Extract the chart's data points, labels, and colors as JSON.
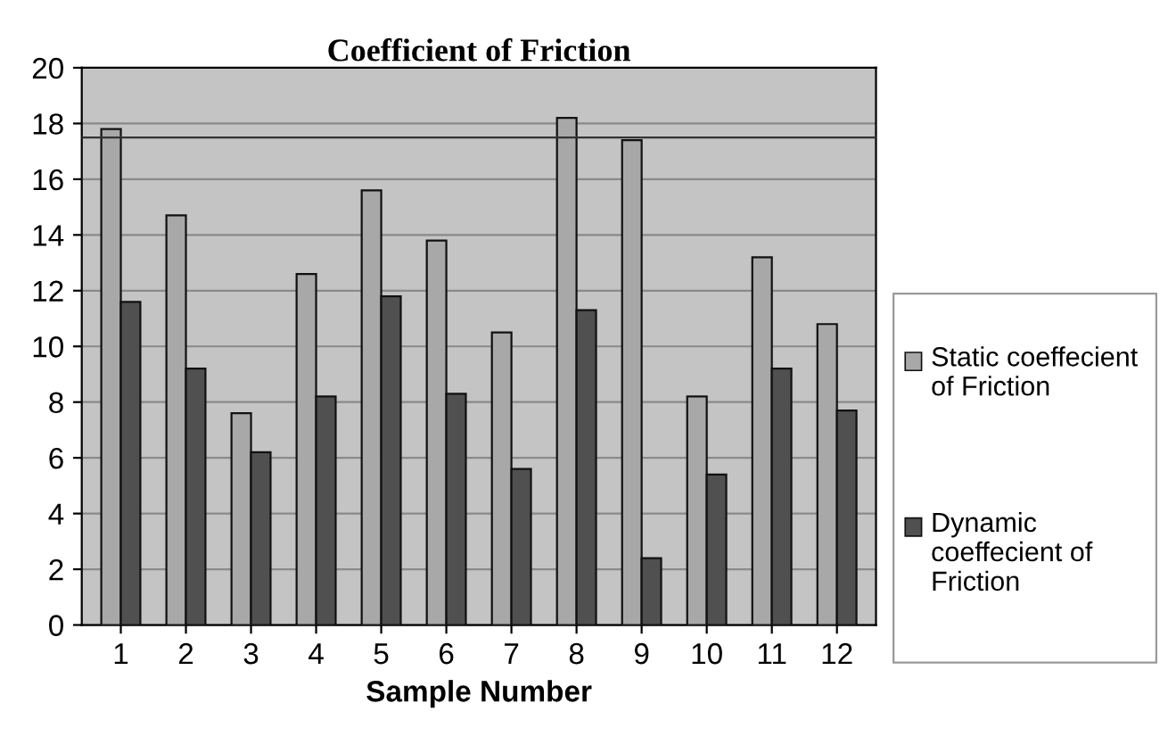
{
  "chart_data": {
    "type": "bar",
    "title": "Coefficient of Friction",
    "xlabel": "Sample Number",
    "categories": [
      "1",
      "2",
      "3",
      "4",
      "5",
      "6",
      "7",
      "8",
      "9",
      "10",
      "11",
      "12"
    ],
    "series": [
      {
        "name": "Static coeffecient of Friction",
        "color": "#a8a8a8",
        "values": [
          17.8,
          14.7,
          7.6,
          12.6,
          15.6,
          13.8,
          10.5,
          18.2,
          17.4,
          8.2,
          13.2,
          10.8
        ]
      },
      {
        "name": "Dynamic coeffecient of Friction",
        "color": "#505050",
        "values": [
          11.6,
          9.2,
          6.2,
          8.2,
          11.8,
          8.3,
          5.6,
          11.3,
          2.4,
          5.4,
          9.2,
          7.7
        ]
      }
    ],
    "ylim": [
      0,
      20
    ],
    "yticks": [
      0,
      2,
      4,
      6,
      8,
      10,
      12,
      14,
      16,
      18,
      20
    ],
    "grid": "y",
    "legend": "right",
    "ref_lines": [
      {
        "axis": "y",
        "value": 17.5,
        "label": null,
        "color": "#333333"
      }
    ]
  }
}
